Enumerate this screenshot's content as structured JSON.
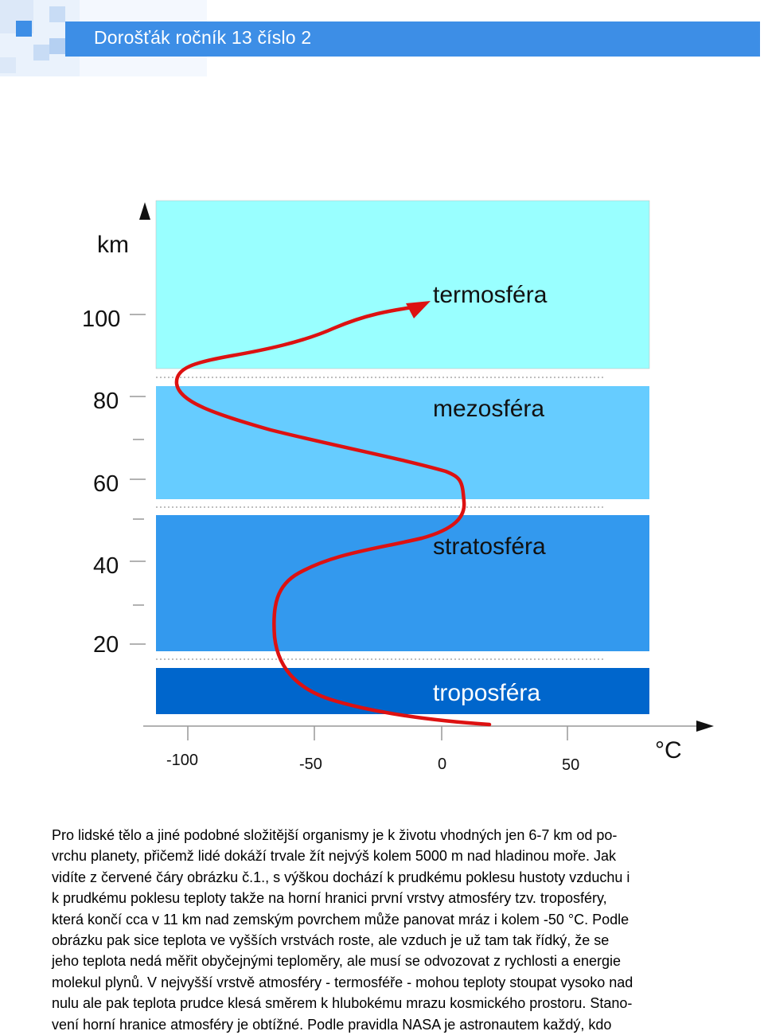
{
  "header": {
    "title": "Dorošťák ročník 13 číslo 2"
  },
  "figure": {
    "y_axis_unit": "km",
    "x_axis_unit": "°C",
    "y_ticks": [
      {
        "label": "100",
        "value": 100
      },
      {
        "label": "80",
        "value": 80
      },
      {
        "label": "60",
        "value": 60
      },
      {
        "label": "40",
        "value": 40
      },
      {
        "label": "20",
        "value": 20
      }
    ],
    "x_ticks": [
      {
        "label": "-100",
        "value": -100
      },
      {
        "label": "-50",
        "value": -50
      },
      {
        "label": "0",
        "value": 0
      },
      {
        "label": "50",
        "value": 50
      }
    ],
    "layers": [
      {
        "name": "termosféra",
        "color": "#99ffff"
      },
      {
        "name": "mezosféra",
        "color": "#66ccff"
      },
      {
        "name": "stratosféra",
        "color": "#3399ee"
      },
      {
        "name": "troposféra",
        "color": "#0066cc"
      }
    ],
    "curve_color": "#dd1111"
  },
  "body": {
    "lines": [
      "Pro lidské tělo a jiné podobné složitější organismy je k životu vhodných jen 6-7 km od po-",
      "vrchu planety, přičemž lidé dokáží trvale žít nejvýš kolem 5000 m nad hladinou moře. Jak",
      "vidíte z červené čáry obrázku č.1., s výškou dochází k prudkému poklesu hustoty vzduchu i",
      "k prudkému poklesu teploty takže na horní hranici první vrstvy atmosféry tzv. troposféry,",
      "která končí cca v 11 km nad zemským povrchem může panovat mráz i kolem -50 °C. Podle",
      "obrázku pak sice teplota ve vyšších vrstvách roste, ale vzduch je už tam tak řídký, že se",
      "jeho teplota nedá měřit obyčejnými teploměry, ale musí se odvozovat z rychlosti a energie",
      "molekul plynů. V nejvyšší vrstvě atmosféry - termosféře - mohou teploty stoupat vysoko nad",
      "nulu ale pak teplota prudce klesá směrem k hlubokému mrazu kosmického prostoru. Stano-",
      "vení horní hranice atmosféry je obtížné. Podle pravidla NASA je astronautem každý, kdo"
    ]
  }
}
